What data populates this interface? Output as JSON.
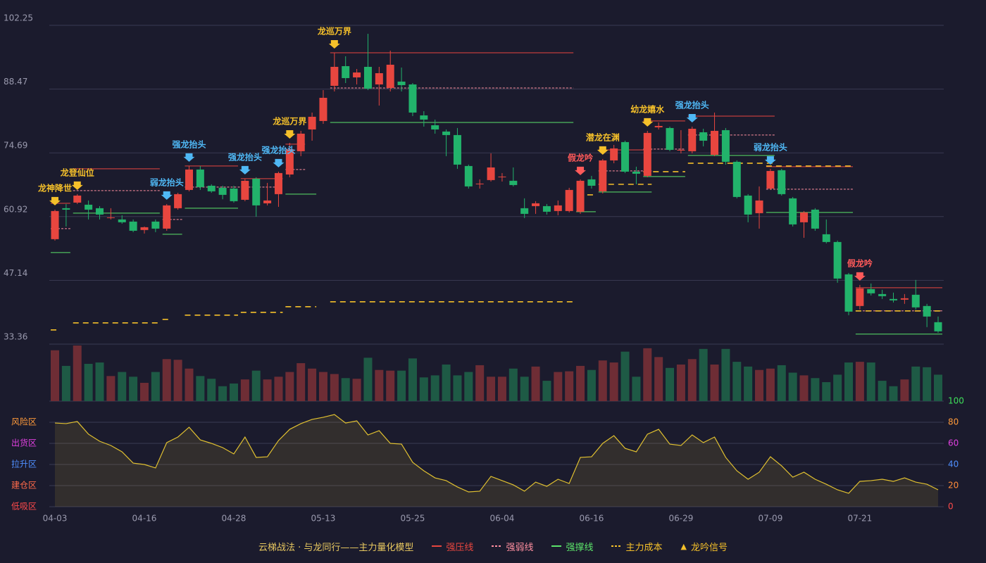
{
  "chart_data": {
    "type": "candlestick",
    "categories": [
      "04-03",
      null,
      null,
      null,
      null,
      null,
      null,
      null,
      "04-16",
      null,
      null,
      null,
      null,
      null,
      null,
      null,
      "04-28",
      null,
      null,
      null,
      null,
      null,
      null,
      null,
      "05-13",
      null,
      null,
      null,
      null,
      null,
      null,
      null,
      "05-25",
      null,
      null,
      null,
      null,
      null,
      null,
      null,
      "06-04",
      null,
      null,
      null,
      null,
      null,
      null,
      null,
      "06-16",
      null,
      null,
      null,
      null,
      null,
      null,
      null,
      "06-29",
      null,
      null,
      null,
      null,
      null,
      null,
      null,
      "07-09",
      null,
      null,
      null,
      null,
      null,
      null,
      null,
      "07-21",
      null,
      null,
      null,
      null,
      null,
      null,
      null
    ],
    "open": [
      56.04,
      62.73,
      63.94,
      63.49,
      62.73,
      60.6,
      60.3,
      59.84,
      58.02,
      59.84,
      58.32,
      62.73,
      66.68,
      71.09,
      67.59,
      67.14,
      66.98,
      64.55,
      69.11,
      63.79,
      65.77,
      70.02,
      75.04,
      79.75,
      81.58,
      89.18,
      93.43,
      91.0,
      93.28,
      89.48,
      88.72,
      90.09,
      89.48,
      82.79,
      80.66,
      79.3,
      78.54,
      71.85,
      67.9,
      68.81,
      69.42,
      68.66,
      62.73,
      63.18,
      63.18,
      62.12,
      62.12,
      61.97,
      68.96,
      66.38,
      73.06,
      77.02,
      70.63,
      69.72,
      80.21,
      80.06,
      75.19,
      75.04,
      79.14,
      74.28,
      79.6,
      72.76,
      65.46,
      61.66,
      66.98,
      70.94,
      64.86,
      59.69,
      62.42,
      57.1,
      55.43,
      48.44,
      41.6,
      45.25,
      44.18,
      43.12,
      42.97,
      44.03,
      41.6,
      38.1
    ],
    "high": [
      62.42,
      63.64,
      65.77,
      64.4,
      63.18,
      62.73,
      61.21,
      60.3,
      58.78,
      60.3,
      63.64,
      66.07,
      71.85,
      71.85,
      67.9,
      67.59,
      67.59,
      69.11,
      69.42,
      68.2,
      70.63,
      76.86,
      79.45,
      83.4,
      88.26,
      96.32,
      95.56,
      92.82,
      100.42,
      93.28,
      96.78,
      93.13,
      89.78,
      83.7,
      81.88,
      79.75,
      80.06,
      72.15,
      68.96,
      74.58,
      70.33,
      71.54,
      64.86,
      64.25,
      63.64,
      64.4,
      67.14,
      68.96,
      69.72,
      73.37,
      76.41,
      77.32,
      71.7,
      79.45,
      81.27,
      80.36,
      79.6,
      80.36,
      79.9,
      83.4,
      80.06,
      73.06,
      65.77,
      67.44,
      71.24,
      71.24,
      65.16,
      62.12,
      62.73,
      60.3,
      55.74,
      48.74,
      46.16,
      46.46,
      45.1,
      44.49,
      44.18,
      47.22,
      42.06,
      39.32
    ],
    "low": [
      55.74,
      58.78,
      63.64,
      60.3,
      60.3,
      60.3,
      59.38,
      57.56,
      57.26,
      57.56,
      57.86,
      62.42,
      66.38,
      66.68,
      66.07,
      64.66,
      63.94,
      64.25,
      60.9,
      63.34,
      63.03,
      69.42,
      73.98,
      77.32,
      80.97,
      87.96,
      89.78,
      89.48,
      88.26,
      84.92,
      87.96,
      87.96,
      82.64,
      80.36,
      78.84,
      73.98,
      71.24,
      66.98,
      66.98,
      68.5,
      68.5,
      67.44,
      60.6,
      61.51,
      61.36,
      61.21,
      61.82,
      61.51,
      66.98,
      65.92,
      72.46,
      70.33,
      67.9,
      69.42,
      79.75,
      75.04,
      74.58,
      74.58,
      76.1,
      73.98,
      72.15,
      64.86,
      59.69,
      58.32,
      66.68,
      65.46,
      58.78,
      56.34,
      57.86,
      55.13,
      46.62,
      39.62,
      40.84,
      43.88,
      43.12,
      42.36,
      42.06,
      40.84,
      37.04,
      35.82
    ],
    "close": [
      62.12,
      62.42,
      65.46,
      62.42,
      61.36,
      60.75,
      59.69,
      57.86,
      58.62,
      58.32,
      63.34,
      65.77,
      71.09,
      67.29,
      66.38,
      65.62,
      64.25,
      68.66,
      63.34,
      64.4,
      70.33,
      75.5,
      78.84,
      82.49,
      86.59,
      93.28,
      90.85,
      92.06,
      88.57,
      91.91,
      93.74,
      89.33,
      83.4,
      81.88,
      79.75,
      78.54,
      72.15,
      67.44,
      68.05,
      71.54,
      69.57,
      67.74,
      61.51,
      63.79,
      61.97,
      63.34,
      66.68,
      68.66,
      67.59,
      73.06,
      75.65,
      70.63,
      70.18,
      79.0,
      80.51,
      75.34,
      75.34,
      79.9,
      77.32,
      79.45,
      72.76,
      65.16,
      61.36,
      64.4,
      70.78,
      65.77,
      59.23,
      61.82,
      58.32,
      55.43,
      47.53,
      40.38,
      45.4,
      44.34,
      43.73,
      42.82,
      43.27,
      41.3,
      39.32,
      36.13
    ],
    "volume": [
      75,
      52,
      82,
      55,
      57,
      37,
      43,
      36,
      27,
      43,
      62,
      61,
      48,
      37,
      33,
      22,
      26,
      32,
      45,
      32,
      36,
      43,
      56,
      48,
      43,
      40,
      34,
      33,
      64,
      46,
      45,
      45,
      63,
      35,
      38,
      54,
      38,
      43,
      53,
      36,
      36,
      48,
      36,
      51,
      30,
      43,
      44,
      52,
      46,
      60,
      57,
      73,
      36,
      78,
      65,
      49,
      54,
      62,
      77,
      54,
      77,
      58,
      51,
      46,
      48,
      53,
      42,
      38,
      34,
      28,
      39,
      57,
      58,
      57,
      30,
      22,
      32,
      51,
      50,
      39
    ],
    "up_color": "#e8463f",
    "down_color": "#22b36b",
    "volume_up_color": "#6e2d35",
    "volume_down_color": "#1e5a45",
    "ylim": [
      33.36,
      102.25
    ],
    "yticks": [
      33.36,
      47.14,
      60.92,
      74.69,
      88.47,
      102.25
    ],
    "grid": true,
    "levels": [
      {
        "name": "强压线",
        "color": "#e8463f",
        "style": "solid",
        "segments": [
          {
            "start": 0,
            "end": 1,
            "value": 63.79
          },
          {
            "start": 2,
            "end": 9,
            "value": 71.24
          },
          {
            "start": 12,
            "end": 16,
            "value": 71.85
          },
          {
            "start": 17,
            "end": 20,
            "value": 69.11
          },
          {
            "start": 21,
            "end": 22,
            "value": 76.56
          },
          {
            "start": 25,
            "end": 46,
            "value": 96.32
          },
          {
            "start": 49,
            "end": 53,
            "value": 75.34
          },
          {
            "start": 53,
            "end": 56,
            "value": 81.58
          },
          {
            "start": 57,
            "end": 64,
            "value": 82.64
          },
          {
            "start": 64,
            "end": 71,
            "value": 71.7
          },
          {
            "start": 72,
            "end": 79,
            "value": 45.55
          }
        ]
      },
      {
        "name": "强弱线",
        "color": "#ff8fa0",
        "style": "dashed",
        "segments": [
          {
            "start": 0,
            "end": 1,
            "value": 58.32
          },
          {
            "start": 2,
            "end": 9,
            "value": 66.53
          },
          {
            "start": 10,
            "end": 11,
            "value": 60.3
          },
          {
            "start": 12,
            "end": 20,
            "value": 67.29
          },
          {
            "start": 21,
            "end": 22,
            "value": 71.09
          },
          {
            "start": 25,
            "end": 46,
            "value": 88.72
          },
          {
            "start": 49,
            "end": 53,
            "value": 70.78
          },
          {
            "start": 53,
            "end": 56,
            "value": 75.5
          },
          {
            "start": 57,
            "end": 64,
            "value": 78.54
          },
          {
            "start": 64,
            "end": 71,
            "value": 66.83
          },
          {
            "start": 72,
            "end": 79,
            "value": 40.54
          }
        ]
      },
      {
        "name": "强撑线",
        "color": "#5be36a",
        "style": "solid",
        "segments": [
          {
            "start": 0,
            "end": 1,
            "value": 53.15
          },
          {
            "start": 2,
            "end": 9,
            "value": 61.66
          },
          {
            "start": 10,
            "end": 11,
            "value": 57.1
          },
          {
            "start": 12,
            "end": 16,
            "value": 62.73
          },
          {
            "start": 21,
            "end": 23,
            "value": 65.77
          },
          {
            "start": 25,
            "end": 46,
            "value": 81.27
          },
          {
            "start": 47,
            "end": 48,
            "value": 61.97
          },
          {
            "start": 49,
            "end": 53,
            "value": 66.22
          },
          {
            "start": 53,
            "end": 56,
            "value": 69.57
          },
          {
            "start": 57,
            "end": 64,
            "value": 74.13
          },
          {
            "start": 64,
            "end": 71,
            "value": 61.82
          },
          {
            "start": 72,
            "end": 79,
            "value": 35.52
          }
        ]
      },
      {
        "name": "主力成本",
        "color": "#f5c02a",
        "style": "dashed",
        "segments": [
          {
            "start": 0,
            "end": 0,
            "value": 36.43
          },
          {
            "start": 2,
            "end": 9,
            "value": 37.95
          },
          {
            "start": 10,
            "end": 10,
            "value": 38.71
          },
          {
            "start": 12,
            "end": 16,
            "value": 39.62
          },
          {
            "start": 17,
            "end": 20,
            "value": 40.23
          },
          {
            "start": 21,
            "end": 23,
            "value": 41.45
          },
          {
            "start": 25,
            "end": 46,
            "value": 42.51
          },
          {
            "start": 48,
            "end": 48,
            "value": 65.62
          },
          {
            "start": 49,
            "end": 53,
            "value": 67.9
          },
          {
            "start": 53,
            "end": 56,
            "value": 70.63
          },
          {
            "start": 57,
            "end": 64,
            "value": 72.46
          },
          {
            "start": 64,
            "end": 71,
            "value": 71.85
          },
          {
            "start": 72,
            "end": 79,
            "value": 40.54
          }
        ]
      }
    ],
    "signal_legend": {
      "name": "龙吟信号",
      "color": "#f5c02a"
    },
    "signals": [
      {
        "index": 0,
        "label": "龙神降世",
        "color": "#f5c02a"
      },
      {
        "index": 2,
        "label": "龙登仙位",
        "color": "#f5c02a"
      },
      {
        "index": 10,
        "label": "弱龙抬头",
        "color": "#4fb8f5"
      },
      {
        "index": 12,
        "label": "强龙抬头",
        "color": "#4fb8f5"
      },
      {
        "index": 17,
        "label": "强龙抬头",
        "color": "#4fb8f5"
      },
      {
        "index": 20,
        "label": "强龙抬头",
        "color": "#4fb8f5"
      },
      {
        "index": 21,
        "label": "龙巡万界",
        "color": "#f5c02a"
      },
      {
        "index": 25,
        "label": "龙巡万界",
        "color": "#f5c02a"
      },
      {
        "index": 47,
        "label": "假龙吟",
        "color": "#ff5a5a"
      },
      {
        "index": 49,
        "label": "潜龙在渊",
        "color": "#f5c02a"
      },
      {
        "index": 53,
        "label": "幼龙嬉水",
        "color": "#f5c02a"
      },
      {
        "index": 57,
        "label": "强龙抬头",
        "color": "#4fb8f5"
      },
      {
        "index": 64,
        "label": "弱龙抬头",
        "color": "#4fb8f5"
      },
      {
        "index": 72,
        "label": "假龙吟",
        "color": "#ff5a5a"
      }
    ],
    "indicator": {
      "values": [
        79.3,
        78.7,
        80.7,
        68.7,
        62,
        58,
        52,
        41.3,
        40,
        36.7,
        60.7,
        66,
        75.3,
        63.3,
        60,
        56,
        50,
        66,
        46.7,
        47.3,
        62.7,
        73.3,
        78.7,
        82.7,
        84.7,
        87.3,
        79.3,
        81.3,
        68,
        72,
        60,
        59.3,
        42,
        34,
        27.3,
        24.7,
        18.7,
        14,
        14.7,
        28.7,
        24.7,
        20.7,
        14.7,
        23.3,
        19.3,
        26,
        22,
        46.7,
        47.3,
        60,
        67.3,
        55.3,
        52,
        68.7,
        73.3,
        59.3,
        58,
        68,
        60.7,
        66,
        46.7,
        34,
        26,
        32.7,
        47.3,
        38.7,
        28,
        32.7,
        26,
        21.3,
        16,
        12.7,
        24,
        24.7,
        26,
        24,
        27.3,
        23.3,
        21.3,
        16
      ],
      "color": "#e0c030",
      "ylim": [
        0,
        100
      ],
      "yticks": [
        0,
        20,
        40,
        60,
        80,
        100
      ],
      "ytick_colors": [
        "#ff4a4a",
        "#ff8c3a",
        "#4f8fff",
        "#e040e0",
        "#ff9a3a",
        "#3ee05a"
      ],
      "zones": [
        {
          "value": 0,
          "label": "低吸区",
          "color": "#ff4a4a"
        },
        {
          "value": 20,
          "label": "建仓区",
          "color": "#ff6a4a"
        },
        {
          "value": 40,
          "label": "拉升区",
          "color": "#4f8fff"
        },
        {
          "value": 60,
          "label": "出货区",
          "color": "#e040e0"
        },
        {
          "value": 80,
          "label": "风险区",
          "color": "#ff9a3a"
        }
      ]
    },
    "legend_title": "云梯战法 · 与龙同行——主力量化模型"
  }
}
